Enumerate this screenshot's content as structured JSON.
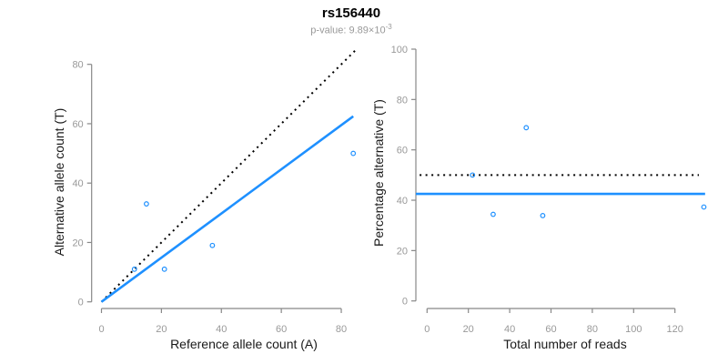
{
  "header": {
    "title": "rs156440",
    "pvalue_label": "p-value: 9.89×10",
    "pvalue_exponent": "-3"
  },
  "colors": {
    "accent_blue": "#1E90FF",
    "axis_line": "#888888",
    "tick_label": "#999999",
    "axis_title": "#1a1a1a",
    "identity_line": "#000000"
  },
  "chart_data": [
    {
      "type": "scatter",
      "xlabel": "Reference allele count (A)",
      "ylabel": "Alternative allele count (T)",
      "x_ticks": [
        0,
        20,
        40,
        60,
        80
      ],
      "y_ticks": [
        0,
        20,
        40,
        60,
        80
      ],
      "xlim": [
        -3.4,
        87.4
      ],
      "ylim": [
        -3.4,
        87.4
      ],
      "points": [
        {
          "x": 11,
          "y": 11
        },
        {
          "x": 15,
          "y": 33
        },
        {
          "x": 21,
          "y": 11
        },
        {
          "x": 37,
          "y": 19
        },
        {
          "x": 84,
          "y": 50
        }
      ],
      "lines": [
        {
          "name": "identity-line",
          "style": "dotted",
          "color": "#000000",
          "width": 2,
          "x1": 0,
          "y1": 0,
          "x2": 85.5,
          "y2": 85.5
        },
        {
          "name": "fit-line",
          "style": "solid",
          "color": "#1E90FF",
          "width": 2.6,
          "x1": 0,
          "y1": 0,
          "x2": 84,
          "y2": 62.5
        }
      ]
    },
    {
      "type": "scatter",
      "xlabel": "Total number of reads",
      "ylabel": "Percentage alternative (T)",
      "x_ticks": [
        0,
        20,
        40,
        60,
        80,
        100,
        120
      ],
      "y_ticks": [
        0,
        20,
        40,
        60,
        80,
        100
      ],
      "xlim": [
        -5.4,
        139.4
      ],
      "ylim": [
        -4,
        104
      ],
      "points": [
        {
          "x": 22,
          "y": 50
        },
        {
          "x": 32,
          "y": 34.4
        },
        {
          "x": 48,
          "y": 68.8
        },
        {
          "x": 56,
          "y": 33.9
        },
        {
          "x": 134,
          "y": 37.3
        }
      ],
      "lines": [
        {
          "name": "expected-50pct-line",
          "style": "dotted",
          "color": "#000000",
          "width": 2,
          "x1": -3.6,
          "y1": 50,
          "x2": 131.6,
          "y2": 50
        },
        {
          "name": "observed-pct-line",
          "style": "solid",
          "color": "#1E90FF",
          "width": 2.6,
          "x1": -5.4,
          "y1": 42.5,
          "x2": 134.6,
          "y2": 42.5
        }
      ]
    }
  ]
}
